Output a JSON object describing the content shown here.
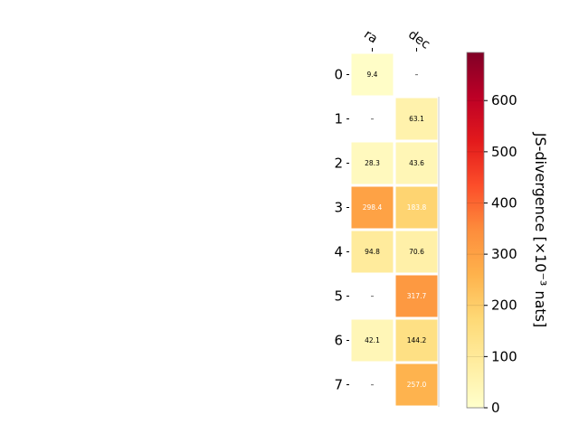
{
  "chart_data": {
    "type": "heatmap",
    "title": "",
    "columns": [
      "ra",
      "dec"
    ],
    "rows": [
      "0",
      "1",
      "2",
      "3",
      "4",
      "5",
      "6",
      "7"
    ],
    "values": [
      [
        9.4,
        null
      ],
      [
        null,
        63.1
      ],
      [
        28.3,
        43.6
      ],
      [
        298.4,
        183.8
      ],
      [
        94.8,
        70.6
      ],
      [
        null,
        317.7
      ],
      [
        42.1,
        144.2
      ],
      [
        null,
        257.0
      ]
    ],
    "labels": [
      [
        "9.4",
        "–"
      ],
      [
        "–",
        "63.1"
      ],
      [
        "28.3",
        "43.6"
      ],
      [
        "298.4",
        "183.8"
      ],
      [
        "94.8",
        "70.6"
      ],
      [
        "–",
        "317.7"
      ],
      [
        "42.1",
        "144.2"
      ],
      [
        "–",
        "257.0"
      ]
    ],
    "colorbar": {
      "label": "JS-divergence [×10⁻³ nats]",
      "range": [
        0,
        694
      ],
      "ticks": [
        0,
        100,
        200,
        300,
        400,
        500,
        600
      ],
      "colormap": "YlOrRd",
      "colors": [
        "#ffffcc",
        "#ffeda0",
        "#fed976",
        "#feb24c",
        "#fd8d3c",
        "#fc4e2a",
        "#e31a1c",
        "#bd0026",
        "#800026"
      ]
    }
  }
}
